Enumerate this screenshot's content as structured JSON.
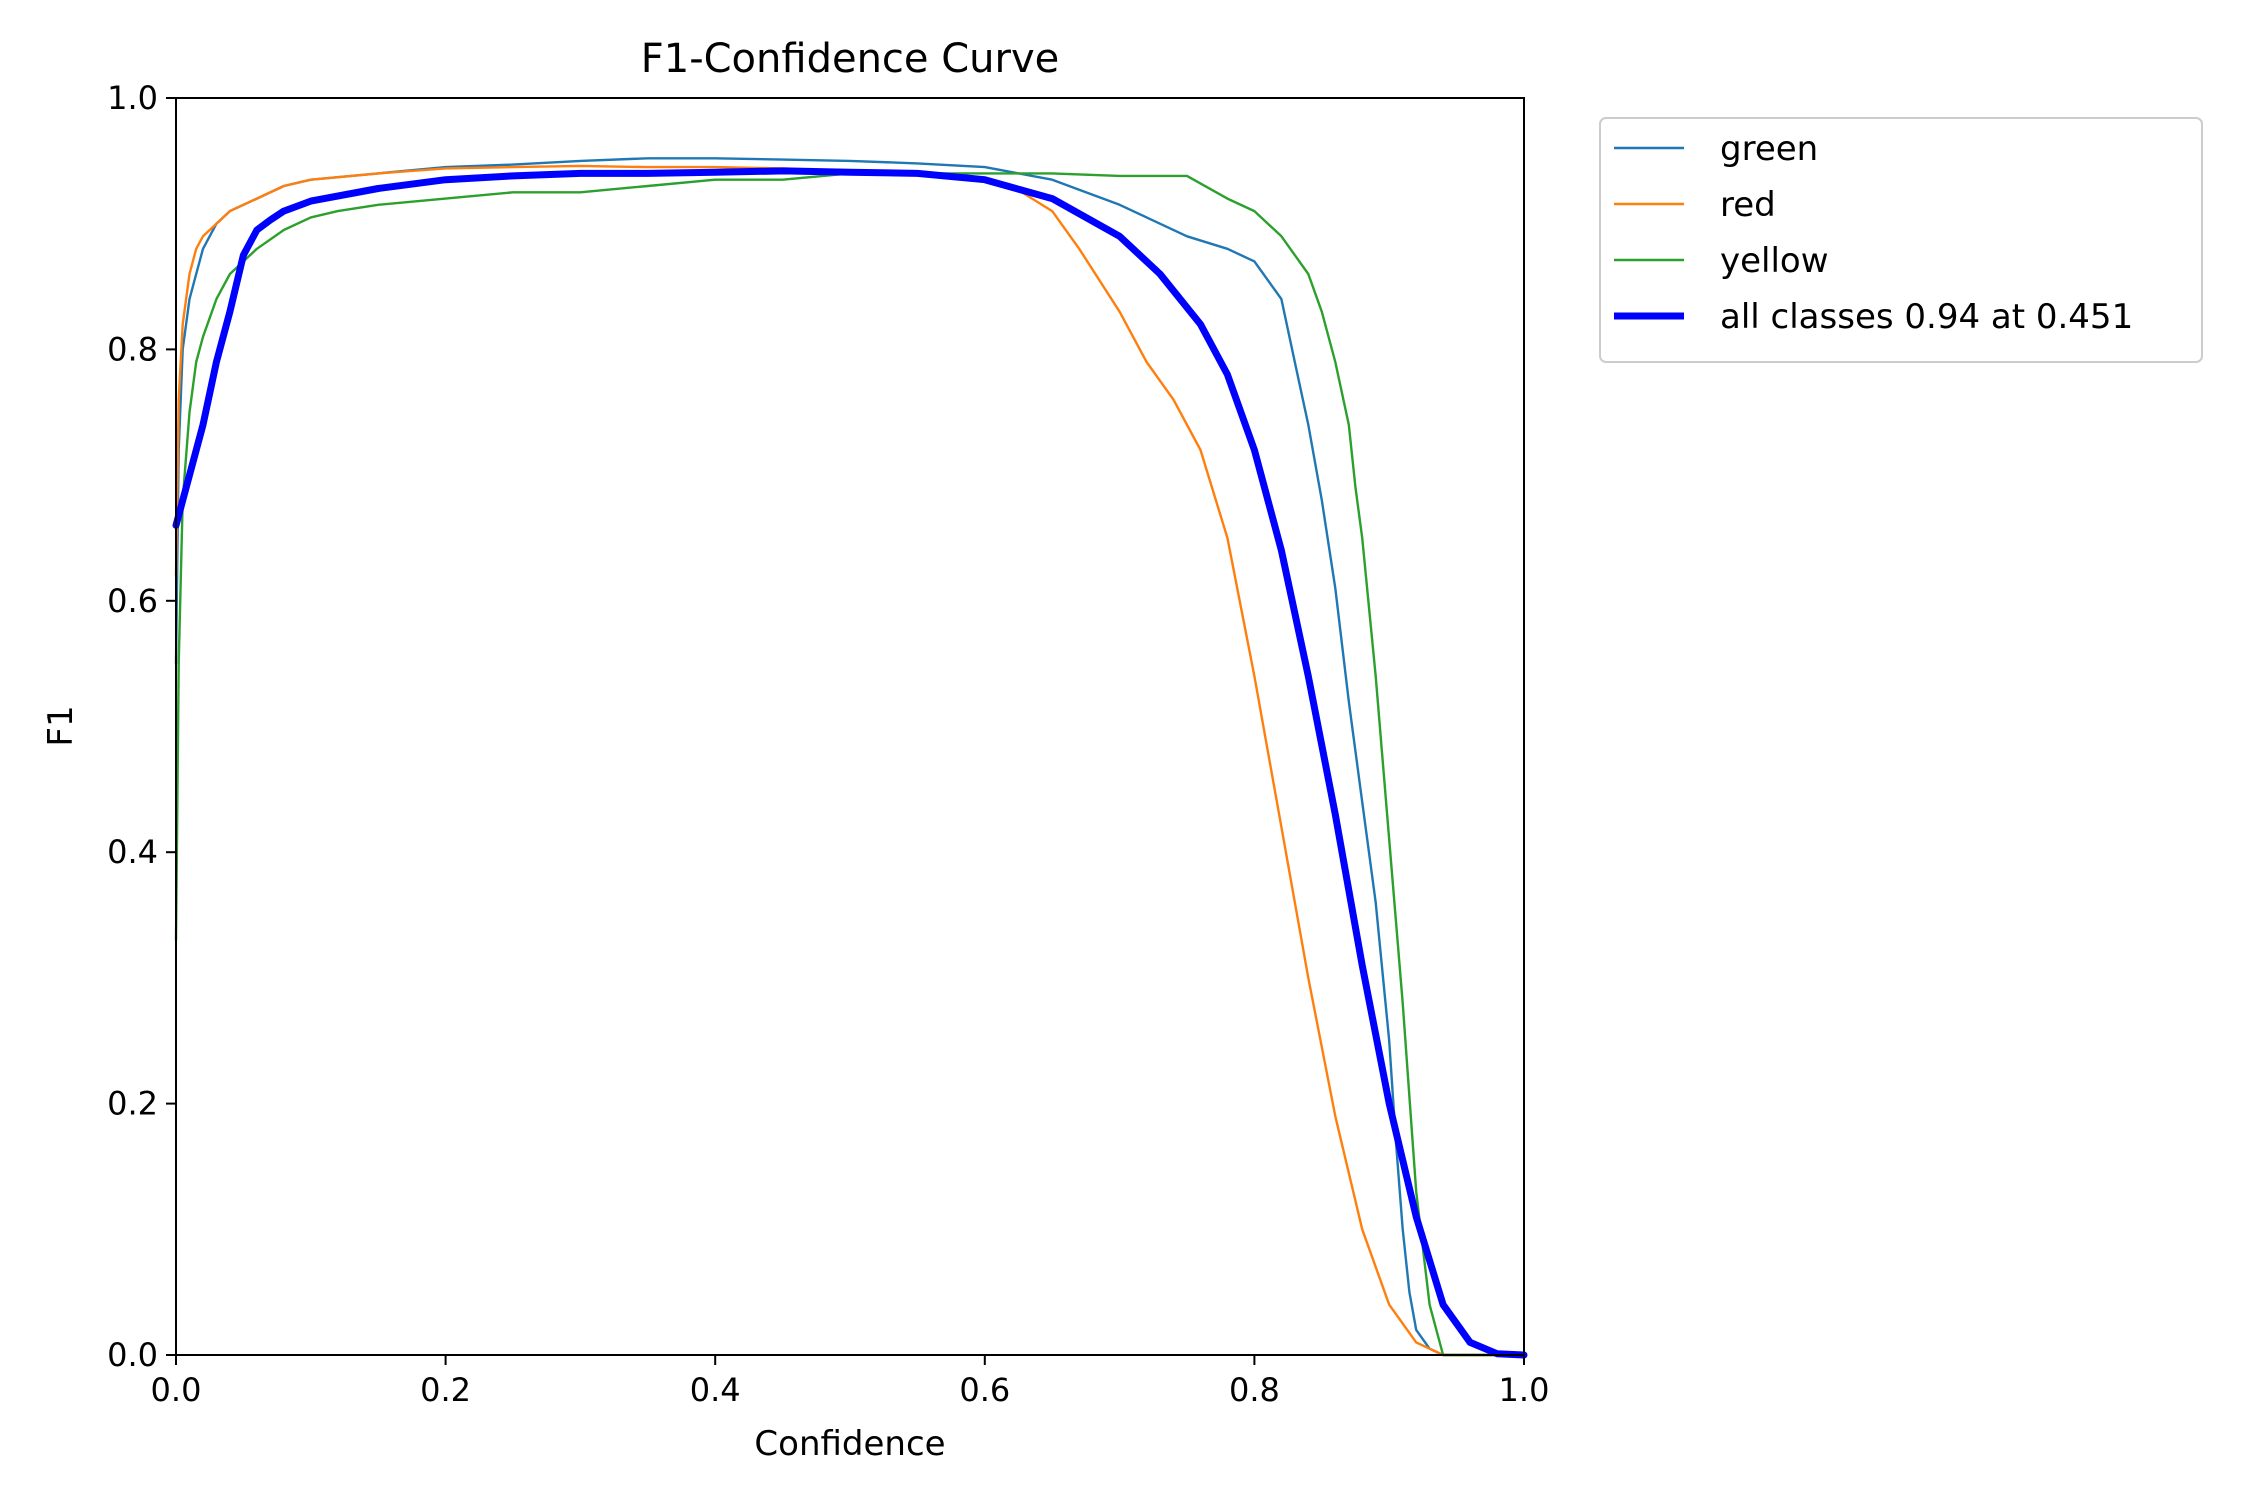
{
  "chart_data": {
    "type": "line",
    "title": "F1-Confidence Curve",
    "xlabel": "Confidence",
    "ylabel": "F1",
    "xlim": [
      0,
      1
    ],
    "ylim": [
      0,
      1
    ],
    "xticks": [
      "0.0",
      "0.2",
      "0.4",
      "0.6",
      "0.8",
      "1.0"
    ],
    "yticks": [
      "0.0",
      "0.2",
      "0.4",
      "0.6",
      "0.8",
      "1.0"
    ],
    "grid": false,
    "legend_position": "outside-top-right",
    "series": [
      {
        "name": "green",
        "color": "#1f77b4",
        "width": "thin",
        "x": [
          0.0,
          0.002,
          0.005,
          0.01,
          0.015,
          0.02,
          0.03,
          0.04,
          0.05,
          0.06,
          0.08,
          0.1,
          0.15,
          0.2,
          0.25,
          0.3,
          0.35,
          0.4,
          0.45,
          0.5,
          0.55,
          0.6,
          0.65,
          0.7,
          0.72,
          0.75,
          0.78,
          0.8,
          0.82,
          0.83,
          0.84,
          0.85,
          0.86,
          0.87,
          0.88,
          0.89,
          0.9,
          0.905,
          0.91,
          0.915,
          0.92,
          0.93,
          0.94,
          1.0
        ],
        "y": [
          0.55,
          0.72,
          0.8,
          0.84,
          0.86,
          0.88,
          0.9,
          0.91,
          0.915,
          0.92,
          0.93,
          0.935,
          0.94,
          0.945,
          0.947,
          0.95,
          0.952,
          0.952,
          0.951,
          0.95,
          0.948,
          0.945,
          0.935,
          0.915,
          0.905,
          0.89,
          0.88,
          0.87,
          0.84,
          0.79,
          0.74,
          0.68,
          0.61,
          0.52,
          0.44,
          0.36,
          0.25,
          0.17,
          0.1,
          0.05,
          0.02,
          0.005,
          0.0,
          0.0
        ]
      },
      {
        "name": "red",
        "color": "#ff7f0e",
        "width": "thin",
        "x": [
          0.0,
          0.002,
          0.005,
          0.01,
          0.015,
          0.02,
          0.03,
          0.04,
          0.05,
          0.06,
          0.08,
          0.1,
          0.15,
          0.2,
          0.25,
          0.3,
          0.35,
          0.4,
          0.45,
          0.5,
          0.55,
          0.6,
          0.62,
          0.65,
          0.67,
          0.7,
          0.72,
          0.74,
          0.76,
          0.78,
          0.8,
          0.82,
          0.84,
          0.86,
          0.88,
          0.9,
          0.92,
          0.94,
          0.95,
          1.0
        ],
        "y": [
          0.62,
          0.76,
          0.82,
          0.86,
          0.88,
          0.89,
          0.9,
          0.91,
          0.915,
          0.92,
          0.93,
          0.935,
          0.94,
          0.944,
          0.945,
          0.946,
          0.945,
          0.945,
          0.944,
          0.942,
          0.94,
          0.935,
          0.93,
          0.91,
          0.88,
          0.83,
          0.79,
          0.76,
          0.72,
          0.65,
          0.54,
          0.42,
          0.3,
          0.19,
          0.1,
          0.04,
          0.01,
          0.0,
          0.0,
          0.0
        ]
      },
      {
        "name": "yellow",
        "color": "#2ca02c",
        "width": "thin",
        "x": [
          0.0,
          0.002,
          0.005,
          0.01,
          0.015,
          0.02,
          0.03,
          0.04,
          0.05,
          0.06,
          0.08,
          0.1,
          0.12,
          0.15,
          0.2,
          0.25,
          0.3,
          0.35,
          0.4,
          0.45,
          0.5,
          0.55,
          0.6,
          0.65,
          0.7,
          0.75,
          0.78,
          0.8,
          0.82,
          0.84,
          0.85,
          0.86,
          0.87,
          0.875,
          0.88,
          0.89,
          0.9,
          0.91,
          0.92,
          0.93,
          0.94,
          0.95,
          1.0
        ],
        "y": [
          0.33,
          0.55,
          0.68,
          0.75,
          0.79,
          0.81,
          0.84,
          0.86,
          0.87,
          0.88,
          0.895,
          0.905,
          0.91,
          0.915,
          0.92,
          0.925,
          0.925,
          0.93,
          0.935,
          0.935,
          0.94,
          0.94,
          0.94,
          0.94,
          0.938,
          0.938,
          0.92,
          0.91,
          0.89,
          0.86,
          0.83,
          0.79,
          0.74,
          0.69,
          0.65,
          0.54,
          0.41,
          0.28,
          0.13,
          0.04,
          0.0,
          0.0,
          0.0
        ]
      },
      {
        "name": "all classes 0.94 at 0.451",
        "color": "#0000ff",
        "width": "thick",
        "x": [
          0.0,
          0.01,
          0.02,
          0.03,
          0.04,
          0.05,
          0.06,
          0.07,
          0.08,
          0.1,
          0.15,
          0.2,
          0.25,
          0.3,
          0.35,
          0.4,
          0.451,
          0.5,
          0.55,
          0.6,
          0.65,
          0.7,
          0.73,
          0.76,
          0.78,
          0.8,
          0.82,
          0.84,
          0.86,
          0.88,
          0.9,
          0.92,
          0.94,
          0.96,
          0.98,
          1.0
        ],
        "y": [
          0.66,
          0.7,
          0.74,
          0.79,
          0.83,
          0.875,
          0.895,
          0.903,
          0.91,
          0.918,
          0.928,
          0.935,
          0.938,
          0.94,
          0.94,
          0.941,
          0.942,
          0.941,
          0.94,
          0.935,
          0.92,
          0.89,
          0.86,
          0.82,
          0.78,
          0.72,
          0.64,
          0.54,
          0.43,
          0.31,
          0.2,
          0.11,
          0.04,
          0.01,
          0.001,
          0.0
        ]
      }
    ]
  }
}
